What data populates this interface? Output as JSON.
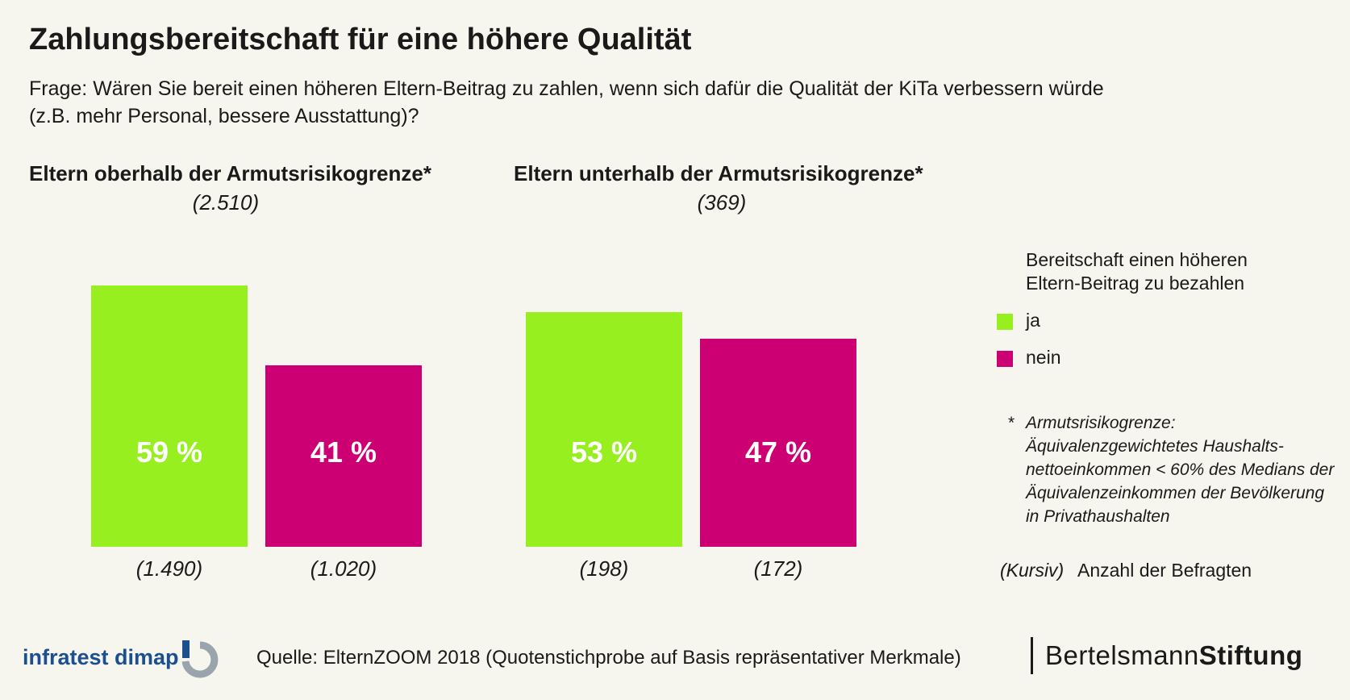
{
  "header": {
    "title": "Zahlungsbereitschaft für eine höhere Qualität",
    "question_line1": "Frage: Wären Sie bereit einen höheren Eltern-Beitrag zu zahlen, wenn sich dafür die Qualität der KiTa verbessern würde",
    "question_line2": "(z.B. mehr Personal, bessere Ausstattung)?"
  },
  "groups": [
    {
      "title": "Eltern oberhalb der Armutsrisikogrenze*",
      "n": "(2.510)"
    },
    {
      "title": "Eltern unterhalb der Armutsrisikogrenze*",
      "n": "(369)"
    }
  ],
  "legend": {
    "title": "Bereitschaft einen höheren Eltern-Beitrag zu bezahlen",
    "items": [
      {
        "label": "ja",
        "color": "#97ef1f"
      },
      {
        "label": "nein",
        "color": "#cc0072"
      }
    ]
  },
  "footnote": {
    "star": "*",
    "text": "Armutsrisikogrenze: Äquivalenzgewichtetes Haushalts-nettoeinkommen < 60% des Medians der Äquivalenzeinkommen der Bevölkerung in Privathaushalten"
  },
  "count_note": {
    "marker": "(Kursiv)",
    "description": "Anzahl der Befragten"
  },
  "footer": {
    "infratest_logo_text": "infratest dimap",
    "source": "Quelle: ElternZOOM 2018 (Quotenstichprobe auf Basis repräsentativer Merkmale)",
    "bertelsmann_light": "Bertelsmann",
    "bertelsmann_bold": "Stiftung"
  },
  "chart_data": {
    "type": "bar",
    "categories": [
      "Eltern oberhalb der Armutsrisikogrenze*",
      "Eltern unterhalb der Armutsrisikogrenze*"
    ],
    "series": [
      {
        "name": "ja",
        "color": "#97ef1f",
        "values": [
          59,
          53
        ],
        "labels": [
          "59 %",
          "53 %"
        ],
        "counts": [
          "(1.490)",
          "(198)"
        ]
      },
      {
        "name": "nein",
        "color": "#cc0072",
        "values": [
          41,
          47
        ],
        "labels": [
          "41 %",
          "47 %"
        ],
        "counts": [
          "(1.020)",
          "(172)"
        ]
      }
    ],
    "group_totals": [
      "(2.510)",
      "(369)"
    ],
    "unit": "%",
    "ylim": [
      0,
      59
    ],
    "grid": false,
    "legend_position": "right"
  }
}
